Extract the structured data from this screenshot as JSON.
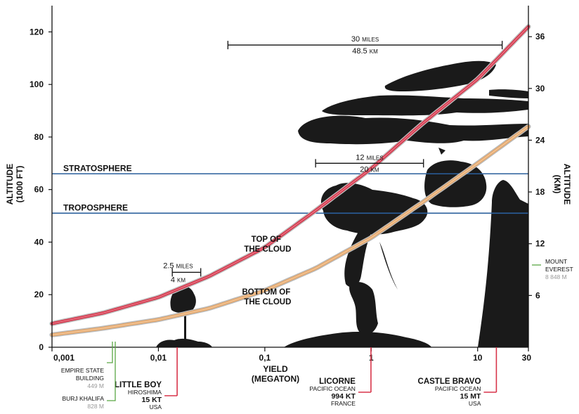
{
  "chart_data": {
    "type": "line",
    "x_scale": "log",
    "xlim": [
      0.001,
      30
    ],
    "ylim": [
      0,
      130
    ],
    "y2lim_km": [
      0,
      39.6
    ],
    "x_ticks": [
      "0,001",
      "0,01",
      "0,1",
      "1",
      "10",
      "30"
    ],
    "y_ticks": [
      "0",
      "20",
      "40",
      "60",
      "80",
      "100",
      "120"
    ],
    "y2_ticks": [
      "6",
      "12",
      "18",
      "24",
      "30",
      "36"
    ],
    "xlabel": [
      "YIELD",
      "(MEGATON)"
    ],
    "ylabel": [
      "ALTITUDE",
      "(1000 FT)"
    ],
    "y2label": [
      "ALTITUDE",
      "(KM)"
    ],
    "series": [
      {
        "label": [
          "TOP OF",
          "THE CLOUD"
        ],
        "color": "#d8344a",
        "x": [
          0.001,
          0.003,
          0.01,
          0.03,
          0.1,
          0.3,
          1,
          3,
          10,
          30
        ],
        "y": [
          9,
          13,
          19,
          27,
          38,
          52,
          68,
          85,
          102,
          122
        ]
      },
      {
        "label": [
          "BOTTOM OF",
          "THE CLOUD"
        ],
        "color": "#e9a96a",
        "x": [
          0.001,
          0.003,
          0.01,
          0.03,
          0.1,
          0.3,
          1,
          3,
          10,
          30
        ],
        "y": [
          4.7,
          7.2,
          10.5,
          14.8,
          21.6,
          30,
          41.7,
          55,
          70,
          84
        ]
      }
    ],
    "layers": [
      {
        "name": "STRATOSPHERE",
        "y": 66,
        "color": "#2a5f9c"
      },
      {
        "name": "TROPOSPHERE",
        "y": 51,
        "color": "#2a5f9c"
      }
    ],
    "dimensions": [
      {
        "miles": "2.5",
        "km": "4",
        "miles_unit": "MILES",
        "km_unit": "KM",
        "x1": 0.0135,
        "x2": 0.025,
        "y": 28.5
      },
      {
        "miles": "12",
        "km": "20",
        "miles_unit": "MILES",
        "km_unit": "KM",
        "x1": 0.3,
        "x2": 3.1,
        "y": 70
      },
      {
        "miles": "30",
        "km": "48.5",
        "miles_unit": "MILES",
        "km_unit": "KM",
        "x1": 0.045,
        "x2": 17,
        "y": 115
      }
    ],
    "tests": [
      {
        "name": "LITTLE BOY",
        "place": "HIROSHIMA",
        "yield_label": "15 KT",
        "country": "USA",
        "x": 0.015
      },
      {
        "name": "LICORNE",
        "place": "PACIFIC OCEAN",
        "yield_label": "994 KT",
        "country": "FRANCE",
        "x": 0.994
      },
      {
        "name": "CASTLE BRAVO",
        "place": "PACIFIC OCEAN",
        "yield_label": "15 MT",
        "country": "USA",
        "x": 15
      }
    ],
    "references": [
      {
        "name": [
          "EMPIRE STATE",
          "BUILDING"
        ],
        "value": "449 M",
        "color": "#5aa845"
      },
      {
        "name": [
          "BURJ KHALIFA"
        ],
        "value": "828 M",
        "color": "#5aa845"
      },
      {
        "name": [
          "MOUNT",
          "EVEREST"
        ],
        "value": "8 848 M",
        "color": "#5aa845"
      }
    ]
  }
}
